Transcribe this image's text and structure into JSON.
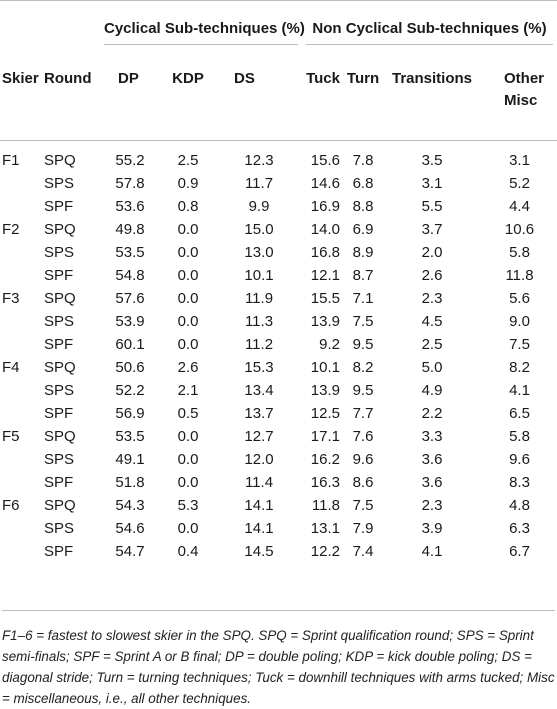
{
  "headers": {
    "group_cyclical": "Cyclical Sub-techniques (%)",
    "group_noncyclical": "Non Cyclical Sub-techniques (%)",
    "columns": [
      "Skier",
      "Round",
      "DP",
      "KDP",
      "DS",
      "Tuck",
      "Turn",
      "Transitions",
      "Other Misc"
    ]
  },
  "rows": [
    [
      "F1",
      "SPQ",
      "55.2",
      "2.5",
      "12.3",
      "15.6",
      "7.8",
      "3.5",
      "3.1"
    ],
    [
      "",
      "SPS",
      "57.8",
      "0.9",
      "11.7",
      "14.6",
      "6.8",
      "3.1",
      "5.2"
    ],
    [
      "",
      "SPF",
      "53.6",
      "0.8",
      "9.9",
      "16.9",
      "8.8",
      "5.5",
      "4.4"
    ],
    [
      "F2",
      "SPQ",
      "49.8",
      "0.0",
      "15.0",
      "14.0",
      "6.9",
      "3.7",
      "10.6"
    ],
    [
      "",
      "SPS",
      "53.5",
      "0.0",
      "13.0",
      "16.8",
      "8.9",
      "2.0",
      "5.8"
    ],
    [
      "",
      "SPF",
      "54.8",
      "0.0",
      "10.1",
      "12.1",
      "8.7",
      "2.6",
      "11.8"
    ],
    [
      "F3",
      "SPQ",
      "57.6",
      "0.0",
      "11.9",
      "15.5",
      "7.1",
      "2.3",
      "5.6"
    ],
    [
      "",
      "SPS",
      "53.9",
      "0.0",
      "11.3",
      "13.9",
      "7.5",
      "4.5",
      "9.0"
    ],
    [
      "",
      "SPF",
      "60.1",
      "0.0",
      "11.2",
      "9.2",
      "9.5",
      "2.5",
      "7.5"
    ],
    [
      "F4",
      "SPQ",
      "50.6",
      "2.6",
      "15.3",
      "10.1",
      "8.2",
      "5.0",
      "8.2"
    ],
    [
      "",
      "SPS",
      "52.2",
      "2.1",
      "13.4",
      "13.9",
      "9.5",
      "4.9",
      "4.1"
    ],
    [
      "",
      "SPF",
      "56.9",
      "0.5",
      "13.7",
      "12.5",
      "7.7",
      "2.2",
      "6.5"
    ],
    [
      "F5",
      "SPQ",
      "53.5",
      "0.0",
      "12.7",
      "17.1",
      "7.6",
      "3.3",
      "5.8"
    ],
    [
      "",
      "SPS",
      "49.1",
      "0.0",
      "12.0",
      "16.2",
      "9.6",
      "3.6",
      "9.6"
    ],
    [
      "",
      "SPF",
      "51.8",
      "0.0",
      "11.4",
      "16.3",
      "8.6",
      "3.6",
      "8.3"
    ],
    [
      "F6",
      "SPQ",
      "54.3",
      "5.3",
      "14.1",
      "11.8",
      "7.5",
      "2.3",
      "4.8"
    ],
    [
      "",
      "SPS",
      "54.6",
      "0.0",
      "14.1",
      "13.1",
      "7.9",
      "3.9",
      "6.3"
    ],
    [
      "",
      "SPF",
      "54.7",
      "0.4",
      "14.5",
      "12.2",
      "7.4",
      "4.1",
      "6.7"
    ]
  ],
  "footnote": "F1–6 = fastest to slowest skier in the SPQ. SPQ = Sprint qualification round; SPS = Sprint semi-finals; SPF = Sprint A or B final; DP = double poling; KDP = kick double poling; DS = diagonal stride; Turn = turning techniques; Tuck = downhill techniques with arms tucked; Misc = miscellaneous, i.e., all other techniques."
}
